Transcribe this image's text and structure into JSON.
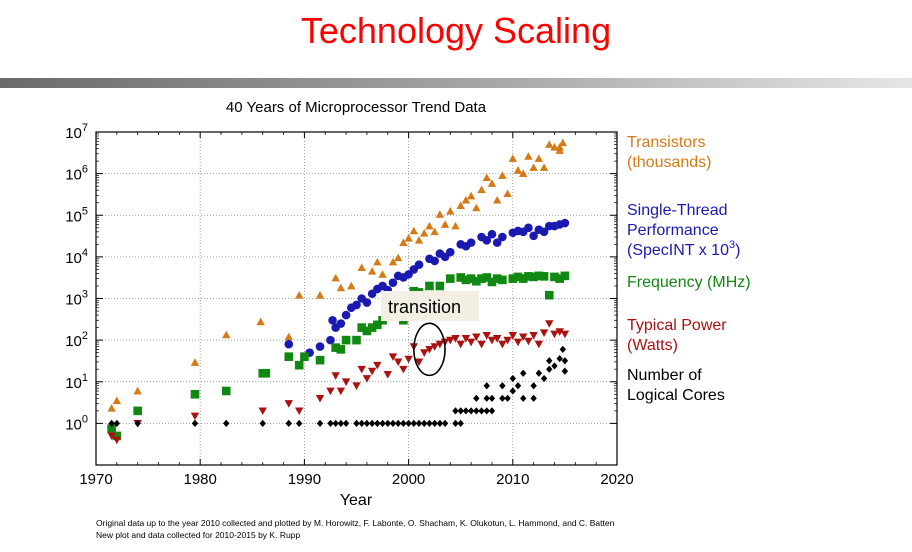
{
  "slide": {
    "title": "Technology Scaling"
  },
  "footnote": {
    "line1": "Original data up to the year 2010 collected and plotted by M. Horowitz, F. Labonte, O. Shacham, K. Olukotun, L. Hammond, and C. Batten",
    "line2": "New plot and data collected for 2010-2015 by K. Rupp"
  },
  "chart_data": {
    "type": "scatter",
    "title": "40 Years of Microprocessor Trend Data",
    "xlabel": "Year",
    "ylabel": "",
    "xlim": [
      1970,
      2020
    ],
    "ylim_log10": [
      -1,
      7
    ],
    "yscale": "log",
    "x_ticks": [
      1970,
      1980,
      1990,
      2000,
      2010,
      2020
    ],
    "x_tick_labels": [
      "1970",
      "1980",
      "1990",
      "2000",
      "2010",
      "2020"
    ],
    "y_ticks": [
      {
        "base": "10",
        "exp": "0"
      },
      {
        "base": "10",
        "exp": "1"
      },
      {
        "base": "10",
        "exp": "2"
      },
      {
        "base": "10",
        "exp": "3"
      },
      {
        "base": "10",
        "exp": "4"
      },
      {
        "base": "10",
        "exp": "5"
      },
      {
        "base": "10",
        "exp": "6"
      },
      {
        "base": "10",
        "exp": "7"
      }
    ],
    "grid": true,
    "annotation": {
      "text": "transition",
      "x_range": [
        2000.5,
        2003.5
      ]
    },
    "series": [
      {
        "name_lines": [
          "Transistors",
          "(thousands)"
        ],
        "marker": "triangle-up",
        "color": "#d47a17",
        "points": [
          [
            1971.5,
            2.3
          ],
          [
            1972,
            3.5
          ],
          [
            1974,
            6
          ],
          [
            1979.5,
            29
          ],
          [
            1982.5,
            134
          ],
          [
            1985.8,
            275
          ],
          [
            1988.5,
            120
          ],
          [
            1989.5,
            1200
          ],
          [
            1991.5,
            1200
          ],
          [
            1993,
            3100
          ],
          [
            1993.5,
            1800
          ],
          [
            1994.5,
            2000
          ],
          [
            1995.5,
            5500
          ],
          [
            1996.5,
            4500
          ],
          [
            1997,
            7500
          ],
          [
            1997.5,
            3800
          ],
          [
            1998.5,
            7500
          ],
          [
            1999,
            9500
          ],
          [
            1999.5,
            22000
          ],
          [
            2000,
            28000
          ],
          [
            2000.5,
            42000
          ],
          [
            2001,
            25000
          ],
          [
            2001.5,
            37000
          ],
          [
            2002,
            55000
          ],
          [
            2002.5,
            40000
          ],
          [
            2003,
            105000
          ],
          [
            2003.5,
            60000
          ],
          [
            2004,
            125000
          ],
          [
            2004.5,
            55000
          ],
          [
            2005,
            170000
          ],
          [
            2005.5,
            230000
          ],
          [
            2006,
            290000
          ],
          [
            2006.5,
            150000
          ],
          [
            2007,
            410000
          ],
          [
            2007.5,
            800000
          ],
          [
            2008,
            580000
          ],
          [
            2008.5,
            230000
          ],
          [
            2009,
            900000
          ],
          [
            2009.5,
            330000
          ],
          [
            2010,
            2300000
          ],
          [
            2010.5,
            1200000
          ],
          [
            2011,
            1000000
          ],
          [
            2011.5,
            2600000
          ],
          [
            2012,
            1400000
          ],
          [
            2012.5,
            2300000
          ],
          [
            2013,
            1400000
          ],
          [
            2013.5,
            5000000
          ],
          [
            2014,
            4300000
          ],
          [
            2014.5,
            4300000
          ],
          [
            2014.8,
            5500000
          ],
          [
            2014.5,
            3600000
          ]
        ]
      },
      {
        "name_lines": [
          "Single-Thread",
          "Performance"
        ],
        "name_line3": {
          "text": "(SpecINT x 10",
          "sup": "3",
          "close": ")"
        },
        "marker": "circle",
        "color": "#1a1ab0",
        "points": [
          [
            1988.5,
            80
          ],
          [
            1990.5,
            50
          ],
          [
            1991.5,
            70
          ],
          [
            1992.5,
            100
          ],
          [
            1992.7,
            300
          ],
          [
            1993,
            200
          ],
          [
            1993.5,
            250
          ],
          [
            1994,
            400
          ],
          [
            1994.5,
            600
          ],
          [
            1995,
            700
          ],
          [
            1995.5,
            1000
          ],
          [
            1996,
            800
          ],
          [
            1996.5,
            1300
          ],
          [
            1997,
            1700
          ],
          [
            1997.5,
            2000
          ],
          [
            1998,
            1600
          ],
          [
            1998.5,
            2400
          ],
          [
            1999,
            3500
          ],
          [
            1999.5,
            3200
          ],
          [
            2000,
            3800
          ],
          [
            2000.5,
            5000
          ],
          [
            2001,
            6500
          ],
          [
            2002,
            9000
          ],
          [
            2002.5,
            8000
          ],
          [
            2003,
            12000
          ],
          [
            2003.5,
            10000
          ],
          [
            2004,
            13000
          ],
          [
            2005,
            20000
          ],
          [
            2005.5,
            18000
          ],
          [
            2006,
            22000
          ],
          [
            2007,
            30000
          ],
          [
            2007.5,
            25000
          ],
          [
            2008,
            35000
          ],
          [
            2008.5,
            22000
          ],
          [
            2009,
            30000
          ],
          [
            2010,
            38000
          ],
          [
            2010.5,
            42000
          ],
          [
            2011,
            40000
          ],
          [
            2011.5,
            50000
          ],
          [
            2012,
            32000
          ],
          [
            2012.5,
            45000
          ],
          [
            2013,
            40000
          ],
          [
            2013.5,
            55000
          ],
          [
            2014,
            55000
          ],
          [
            2014.5,
            60000
          ],
          [
            2015,
            65000
          ]
        ]
      },
      {
        "name_lines": [
          "Frequency (MHz)"
        ],
        "marker": "square",
        "color": "#118811",
        "points": [
          [
            1971.5,
            0.75
          ],
          [
            1972,
            0.5
          ],
          [
            1974,
            2
          ],
          [
            1979.5,
            5
          ],
          [
            1982.5,
            6
          ],
          [
            1986,
            16
          ],
          [
            1986.3,
            16
          ],
          [
            1988.5,
            40
          ],
          [
            1989.5,
            25
          ],
          [
            1990,
            40
          ],
          [
            1991.5,
            33
          ],
          [
            1993,
            66
          ],
          [
            1993.5,
            60
          ],
          [
            1994,
            100
          ],
          [
            1995,
            100
          ],
          [
            1995.5,
            200
          ],
          [
            1996,
            166
          ],
          [
            1996.5,
            200
          ],
          [
            1997,
            233
          ],
          [
            1997.5,
            300
          ],
          [
            1998.5,
            450
          ],
          [
            1999.5,
            300
          ],
          [
            1999,
            600
          ],
          [
            2000,
            1000
          ],
          [
            2000.5,
            1500
          ],
          [
            2001,
            1400
          ],
          [
            2002,
            2000
          ],
          [
            2003,
            2000
          ],
          [
            2004,
            3000
          ],
          [
            2005,
            3200
          ],
          [
            2005.5,
            2800
          ],
          [
            2006,
            3000
          ],
          [
            2006.5,
            2600
          ],
          [
            2007,
            3000
          ],
          [
            2007.5,
            3200
          ],
          [
            2008,
            2500
          ],
          [
            2008.5,
            3000
          ],
          [
            2009,
            2800
          ],
          [
            2010,
            3000
          ],
          [
            2010.5,
            3300
          ],
          [
            2011,
            3000
          ],
          [
            2011.5,
            3400
          ],
          [
            2012,
            3300
          ],
          [
            2012.5,
            3500
          ],
          [
            2013,
            3400
          ],
          [
            2013.5,
            1200
          ],
          [
            2014,
            3300
          ],
          [
            2014.5,
            3000
          ],
          [
            2015,
            3500
          ]
        ]
      },
      {
        "name_lines": [
          "Typical Power",
          "(Watts)"
        ],
        "marker": "triangle-down",
        "color": "#aa1111",
        "points": [
          [
            1971.5,
            0.5
          ],
          [
            1972,
            0.4
          ],
          [
            1974,
            1
          ],
          [
            1979.5,
            1.5
          ],
          [
            1986,
            2
          ],
          [
            1988.5,
            3
          ],
          [
            1989.5,
            2
          ],
          [
            1991.5,
            4
          ],
          [
            1992.5,
            6
          ],
          [
            1993,
            14
          ],
          [
            1993.5,
            6
          ],
          [
            1994,
            10
          ],
          [
            1995,
            8
          ],
          [
            1995.5,
            20
          ],
          [
            1996,
            12
          ],
          [
            1996.5,
            18
          ],
          [
            1997,
            25
          ],
          [
            1998,
            15
          ],
          [
            1998.5,
            40
          ],
          [
            1999,
            30
          ],
          [
            1999.5,
            20
          ],
          [
            2000,
            35
          ],
          [
            2000.5,
            70
          ],
          [
            2001,
            30
          ],
          [
            2001.5,
            50
          ],
          [
            2002,
            60
          ],
          [
            2002.5,
            70
          ],
          [
            2003,
            80
          ],
          [
            2003.5,
            90
          ],
          [
            2004,
            100
          ],
          [
            2004.5,
            110
          ],
          [
            2005,
            80
          ],
          [
            2005.5,
            110
          ],
          [
            2006,
            90
          ],
          [
            2006.5,
            120
          ],
          [
            2007,
            80
          ],
          [
            2007.5,
            130
          ],
          [
            2008,
            100
          ],
          [
            2008.5,
            110
          ],
          [
            2009,
            80
          ],
          [
            2009.5,
            100
          ],
          [
            2010,
            130
          ],
          [
            2010.5,
            90
          ],
          [
            2011,
            120
          ],
          [
            2011.5,
            95
          ],
          [
            2012,
            130
          ],
          [
            2012.5,
            80
          ],
          [
            2013,
            150
          ],
          [
            2013.5,
            250
          ],
          [
            2014,
            140
          ],
          [
            2014.5,
            160
          ],
          [
            2015,
            140
          ]
        ]
      },
      {
        "name_lines": [
          "Number of",
          "Logical Cores"
        ],
        "marker": "diamond",
        "color": "#000000",
        "points": [
          [
            1971.5,
            1
          ],
          [
            1972,
            1
          ],
          [
            1974,
            1
          ],
          [
            1979.5,
            1
          ],
          [
            1982.5,
            1
          ],
          [
            1986,
            1
          ],
          [
            1988.5,
            1
          ],
          [
            1989.5,
            1
          ],
          [
            1991.5,
            1
          ],
          [
            1992.5,
            1
          ],
          [
            1993,
            1
          ],
          [
            1993.5,
            1
          ],
          [
            1994,
            1
          ],
          [
            1995,
            1
          ],
          [
            1995.5,
            1
          ],
          [
            1996,
            1
          ],
          [
            1996.5,
            1
          ],
          [
            1997,
            1
          ],
          [
            1997.5,
            1
          ],
          [
            1998,
            1
          ],
          [
            1998.5,
            1
          ],
          [
            1999,
            1
          ],
          [
            1999.5,
            1
          ],
          [
            2000,
            1
          ],
          [
            2000.5,
            1
          ],
          [
            2001,
            1
          ],
          [
            2001.5,
            1
          ],
          [
            2002,
            1
          ],
          [
            2002.5,
            1
          ],
          [
            2003,
            1
          ],
          [
            2003.5,
            1
          ],
          [
            2004.5,
            1
          ],
          [
            2005,
            1
          ],
          [
            2004.5,
            2
          ],
          [
            2005,
            2
          ],
          [
            2005.5,
            2
          ],
          [
            2006,
            2
          ],
          [
            2006.5,
            2
          ],
          [
            2007,
            2
          ],
          [
            2007.5,
            2
          ],
          [
            2008,
            2
          ],
          [
            2006.5,
            4
          ],
          [
            2007.5,
            4
          ],
          [
            2008,
            4
          ],
          [
            2009,
            4
          ],
          [
            2009.5,
            4
          ],
          [
            2007.5,
            8
          ],
          [
            2009,
            8
          ],
          [
            2010,
            6
          ],
          [
            2010,
            12
          ],
          [
            2010.5,
            8
          ],
          [
            2011,
            4
          ],
          [
            2011,
            16
          ],
          [
            2012,
            4
          ],
          [
            2012,
            8
          ],
          [
            2012.5,
            16
          ],
          [
            2013,
            12
          ],
          [
            2013.5,
            20
          ],
          [
            2013.5,
            32
          ],
          [
            2014,
            24
          ],
          [
            2014.5,
            36
          ],
          [
            2014.8,
            60
          ],
          [
            2015,
            18
          ],
          [
            2015,
            32
          ]
        ]
      }
    ]
  }
}
